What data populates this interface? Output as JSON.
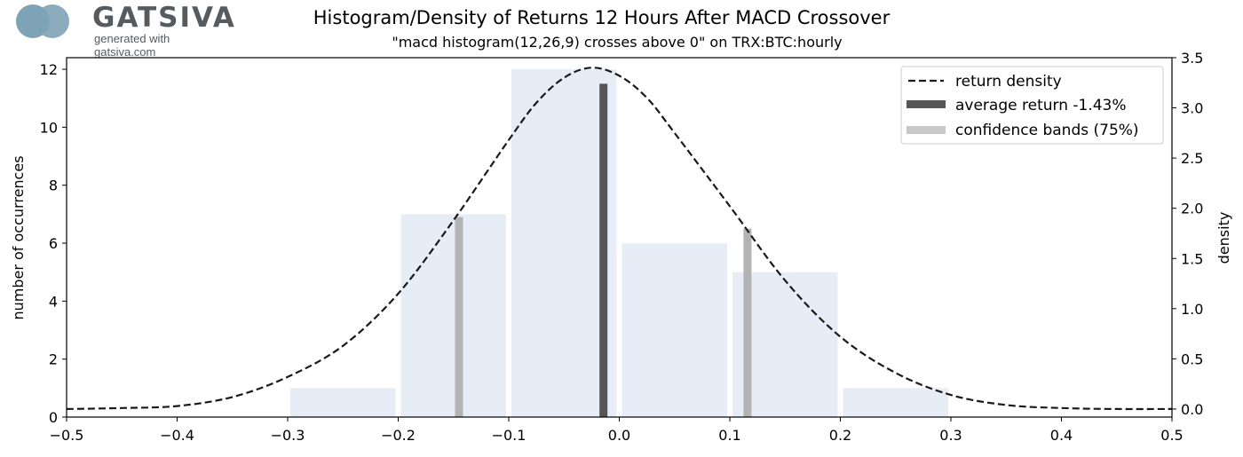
{
  "logo": {
    "name": "GATSIVA",
    "tagline": "generated with gatsiva.com"
  },
  "chart_data": {
    "type": "bar",
    "title": "Histogram/Density of Returns 12 Hours After MACD Crossover",
    "subtitle": "\"macd histogram(12,26,9) crosses above 0\" on TRX:BTC:hourly",
    "ylabel": "number of occurrences",
    "y2label": "density",
    "xlim": [
      -0.5,
      0.5
    ],
    "ylim": [
      0,
      12.4
    ],
    "y2lim": [
      -0.08,
      3.5
    ],
    "x_ticks": [
      -0.5,
      -0.4,
      -0.3,
      -0.2,
      -0.1,
      0.0,
      0.1,
      0.2,
      0.3,
      0.4,
      0.5
    ],
    "x_tick_labels": [
      "−0.5",
      "−0.4",
      "−0.3",
      "−0.2",
      "−0.1",
      "0.0",
      "0.1",
      "0.2",
      "0.3",
      "0.4",
      "0.5"
    ],
    "y_ticks": [
      0,
      2,
      4,
      6,
      8,
      10,
      12
    ],
    "y_tick_labels": [
      "0",
      "2",
      "4",
      "6",
      "8",
      "10",
      "12"
    ],
    "y2_ticks": [
      0.0,
      0.5,
      1.0,
      1.5,
      2.0,
      2.5,
      3.0,
      3.5
    ],
    "y2_tick_labels": [
      "0.0",
      "0.5",
      "1.0",
      "1.5",
      "2.0",
      "2.5",
      "3.0",
      "3.5"
    ],
    "histogram": {
      "bins": [
        [
          -0.3,
          -0.2
        ],
        [
          -0.2,
          -0.1
        ],
        [
          -0.1,
          0.0
        ],
        [
          0.0,
          0.1
        ],
        [
          0.1,
          0.2
        ],
        [
          0.2,
          0.3
        ]
      ],
      "counts": [
        1,
        7,
        12,
        6,
        5,
        1
      ],
      "color": "#e6edf7"
    },
    "density": {
      "name": "return density",
      "color": "#1a1a1a",
      "x": [
        -0.5,
        -0.45,
        -0.4,
        -0.35,
        -0.3,
        -0.25,
        -0.2,
        -0.15,
        -0.1,
        -0.075,
        -0.05,
        -0.025,
        0.0,
        0.025,
        0.05,
        0.1,
        0.15,
        0.2,
        0.25,
        0.3,
        0.35,
        0.4,
        0.45,
        0.5
      ],
      "y": [
        0.0,
        0.01,
        0.03,
        0.12,
        0.32,
        0.63,
        1.15,
        1.88,
        2.68,
        3.05,
        3.3,
        3.4,
        3.32,
        3.1,
        2.75,
        2.02,
        1.28,
        0.72,
        0.36,
        0.14,
        0.04,
        0.01,
        0.0,
        0.0
      ]
    },
    "average_return": {
      "name": "average return -1.43%",
      "x": -0.0143,
      "value": 11.5,
      "color": "#555555"
    },
    "confidence_bands": {
      "name": "confidence bands (75%)",
      "x": [
        -0.145,
        0.116
      ],
      "values": [
        6.9,
        6.5
      ],
      "color": "#b3b3b3"
    },
    "legend_position": "top-right"
  }
}
